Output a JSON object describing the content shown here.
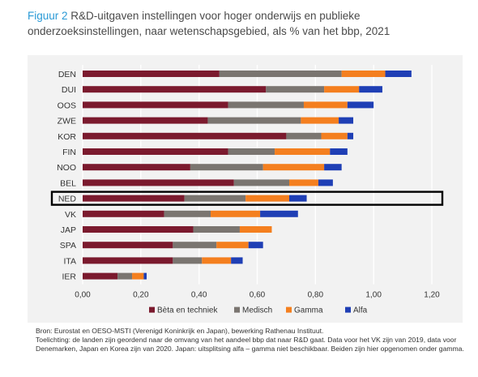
{
  "figure_label": "Figuur 2",
  "title": "R&D-uitgaven instellingen voor hoger onderwijs en publieke onderzoeksinstellingen, naar wetenschapsgebied, als % van het bbp, 2021",
  "footer": {
    "source": "Bron: Eurostat en OESO-MSTI (Verenigd Koninkrijk en Japan), bewerking Rathenau Instituut.",
    "note": "Toelichting: de landen zijn geordend naar de omvang van het aandeel bbp dat naar R&D gaat. Data voor het VK zijn van 2019, data voor Denemarken, Japan en Korea zijn van 2020. Japan: uitsplitsing alfa – gamma niet beschikbaar. Beiden zijn hier opgenomen onder gamma."
  },
  "chart_data": {
    "type": "bar",
    "orientation": "horizontal",
    "stacked": true,
    "categories": [
      "DEN",
      "DUI",
      "OOS",
      "ZWE",
      "KOR",
      "FIN",
      "NOO",
      "BEL",
      "NED",
      "VK",
      "JAP",
      "SPA",
      "ITA",
      "IER"
    ],
    "highlight": "NED",
    "series": [
      {
        "name": "Bèta en techniek",
        "color": "#7b1a2e",
        "values": [
          0.47,
          0.63,
          0.5,
          0.43,
          0.7,
          0.5,
          0.37,
          0.52,
          0.35,
          0.28,
          0.38,
          0.31,
          0.31,
          0.12
        ]
      },
      {
        "name": "Medisch",
        "color": "#7a7570",
        "values": [
          0.42,
          0.2,
          0.26,
          0.32,
          0.12,
          0.16,
          0.25,
          0.19,
          0.21,
          0.16,
          0.16,
          0.15,
          0.1,
          0.05
        ]
      },
      {
        "name": "Gamma",
        "color": "#f47f1f",
        "values": [
          0.15,
          0.12,
          0.15,
          0.13,
          0.09,
          0.19,
          0.21,
          0.1,
          0.15,
          0.17,
          0.11,
          0.11,
          0.1,
          0.04
        ]
      },
      {
        "name": "Alfa",
        "color": "#1f3fb5",
        "values": [
          0.09,
          0.08,
          0.09,
          0.05,
          0.02,
          0.06,
          0.06,
          0.05,
          0.06,
          0.13,
          0.0,
          0.05,
          0.04,
          0.01
        ]
      }
    ],
    "xlim": [
      0,
      1.2
    ],
    "xticks": [
      "0,00",
      "0,20",
      "0,40",
      "0,60",
      "0,80",
      "1,00",
      "1,20"
    ],
    "grid": true,
    "legend_position": "bottom"
  }
}
